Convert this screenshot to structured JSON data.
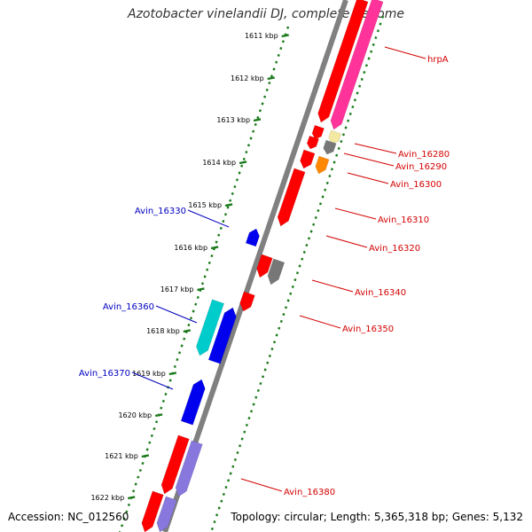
{
  "title": "Azotobacter vinelandii DJ, complete genome",
  "footer": {
    "accession": "Accession: NC_012560",
    "topology": "Topology: circular; Length: 5,365,318 bp; Genes: 5,132"
  },
  "colors": {
    "backbone": "#808080",
    "ticks": "#1a7a1a",
    "forward_label": "#d40000",
    "reverse_label": "#0000c0",
    "red_cds": "#ff0000",
    "pink_gene": "#ff3399",
    "blue_cds": "#0000ee",
    "cyan_gene": "#00cccc",
    "violet_gene": "#8877dd",
    "gray_gene": "#777777",
    "orange_gene": "#ff8800",
    "pale_gene": "#f4e9a0"
  },
  "scale_ticks": [
    {
      "label": "1611 kbp"
    },
    {
      "label": "1612 kbp"
    },
    {
      "label": "1613 kbp"
    },
    {
      "label": "1614 kbp"
    },
    {
      "label": "1615 kbp"
    },
    {
      "label": "1616 kbp"
    },
    {
      "label": "1617 kbp"
    },
    {
      "label": "1618 kbp"
    },
    {
      "label": "1619 kbp"
    },
    {
      "label": "1620 kbp"
    },
    {
      "label": "1621 kbp"
    },
    {
      "label": "1622 kbp"
    }
  ],
  "gene_labels": [
    {
      "name": "hrpA",
      "strand": "forward"
    },
    {
      "name": "Avin_16280",
      "strand": "forward"
    },
    {
      "name": "Avin_16290",
      "strand": "forward"
    },
    {
      "name": "Avin_16300",
      "strand": "forward"
    },
    {
      "name": "Avin_16310",
      "strand": "forward"
    },
    {
      "name": "Avin_16320",
      "strand": "forward"
    },
    {
      "name": "Avin_16340",
      "strand": "forward"
    },
    {
      "name": "Avin_16350",
      "strand": "forward"
    },
    {
      "name": "Avin_16380",
      "strand": "forward"
    },
    {
      "name": "Avin_16330",
      "strand": "reverse"
    },
    {
      "name": "Avin_16360",
      "strand": "reverse"
    },
    {
      "name": "Avin_16370",
      "strand": "reverse"
    }
  ]
}
